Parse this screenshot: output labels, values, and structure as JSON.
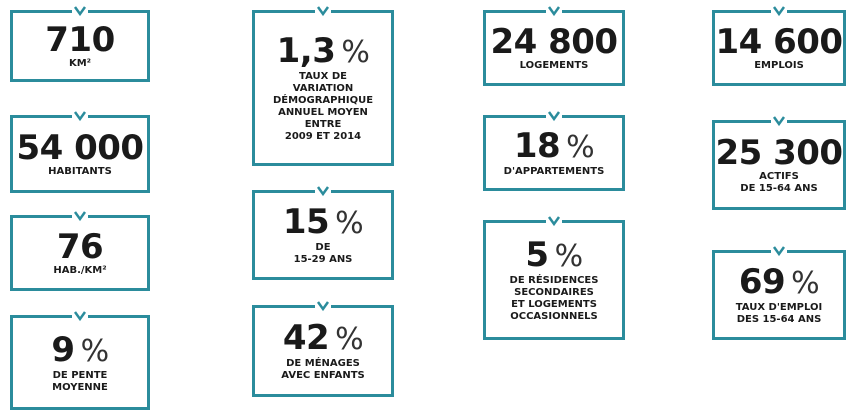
{
  "columns": [
    {
      "cards": [
        {
          "value": "710",
          "label": [
            "KM²"
          ]
        },
        {
          "value": "54 000",
          "label": [
            "HABITANTS"
          ]
        },
        {
          "value": "76",
          "label": [
            "HAB./KM²"
          ]
        },
        {
          "value": "9",
          "unit": "%",
          "label": [
            "DE PENTE",
            "MOYENNE"
          ]
        }
      ]
    },
    {
      "cards": [
        {
          "value": "1,3",
          "unit": "%",
          "label": [
            "TAUX DE",
            "VARIATION",
            "DÉMOGRAPHIQUE",
            "ANNUEL MOYEN",
            "ENTRE",
            "2009 ET 2014"
          ]
        },
        {
          "value": "15",
          "unit": "%",
          "label": [
            "DE",
            "15-29 ANS"
          ]
        },
        {
          "value": "42",
          "unit": "%",
          "label": [
            "DE MÉNAGES",
            "AVEC ENFANTS"
          ]
        }
      ]
    },
    {
      "cards": [
        {
          "value": "24 800",
          "label": [
            "LOGEMENTS"
          ]
        },
        {
          "value": "18",
          "unit": "%",
          "label": [
            "D'APPARTEMENTS"
          ]
        },
        {
          "value": "5",
          "unit": "%",
          "label": [
            "DE RÉSIDENCES",
            "SECONDAIRES",
            "ET LOGEMENTS",
            "OCCASIONNELS"
          ]
        }
      ]
    },
    {
      "cards": [
        {
          "value": "14 600",
          "label": [
            "EMPLOIS"
          ]
        },
        {
          "value": "25 300",
          "label": [
            "ACTIFS",
            "DE 15-64 ANS"
          ]
        },
        {
          "value": "69",
          "unit": "%",
          "label": [
            "TAUX D'EMPLOI",
            "DES 15-64 ANS"
          ]
        }
      ]
    }
  ]
}
